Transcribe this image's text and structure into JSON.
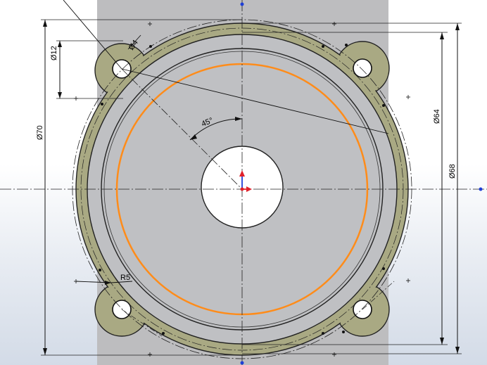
{
  "dimensions": {
    "hole_diameter": "Ø12",
    "small_hole": "Ø4",
    "outer_diameter": "Ø70",
    "flange_diameter": "Ø64",
    "bolt_circle_diameter": "Ø68",
    "angle": "45°",
    "fillet_radius": "R5"
  },
  "colors": {
    "flange": "#a9a983",
    "face": "#bfc0c3",
    "sketch_circle": "#ff8c1a",
    "origin_x": "#e0202a",
    "origin_y": "#1f3fd6",
    "point_blue": "#1f3fd6"
  },
  "icons": {
    "origin": "origin-icon"
  }
}
